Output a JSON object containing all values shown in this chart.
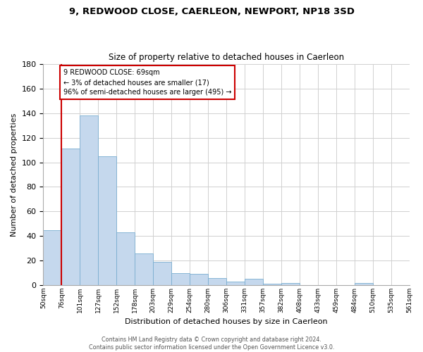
{
  "title": "9, REDWOOD CLOSE, CAERLEON, NEWPORT, NP18 3SD",
  "subtitle": "Size of property relative to detached houses in Caerleon",
  "bar_values": [
    45,
    111,
    138,
    105,
    43,
    26,
    19,
    10,
    9,
    6,
    3,
    5,
    1,
    2,
    0,
    0,
    0,
    2,
    0,
    0
  ],
  "bar_labels": [
    "50sqm",
    "76sqm",
    "101sqm",
    "127sqm",
    "152sqm",
    "178sqm",
    "203sqm",
    "229sqm",
    "254sqm",
    "280sqm",
    "306sqm",
    "331sqm",
    "357sqm",
    "382sqm",
    "408sqm",
    "433sqm",
    "459sqm",
    "484sqm",
    "510sqm",
    "535sqm",
    "561sqm"
  ],
  "ylabel": "Number of detached properties",
  "xlabel": "Distribution of detached houses by size in Caerleon",
  "bar_color": "#c5d8ed",
  "bar_edge_color": "#7aaed0",
  "highlight_color": "#cc0000",
  "annotation_box_color": "#ffffff",
  "annotation_border_color": "#cc0000",
  "annotation_lines": [
    "9 REDWOOD CLOSE: 69sqm",
    "← 3% of detached houses are smaller (17)",
    "96% of semi-detached houses are larger (495) →"
  ],
  "ylim": [
    0,
    180
  ],
  "yticks": [
    0,
    20,
    40,
    60,
    80,
    100,
    120,
    140,
    160,
    180
  ],
  "footer_line1": "Contains HM Land Registry data © Crown copyright and database right 2024.",
  "footer_line2": "Contains public sector information licensed under the Open Government Licence v3.0.",
  "background_color": "#ffffff",
  "grid_color": "#d0d0d0",
  "red_line_at_label_index": 1,
  "fig_width": 6.0,
  "fig_height": 5.0,
  "dpi": 100
}
